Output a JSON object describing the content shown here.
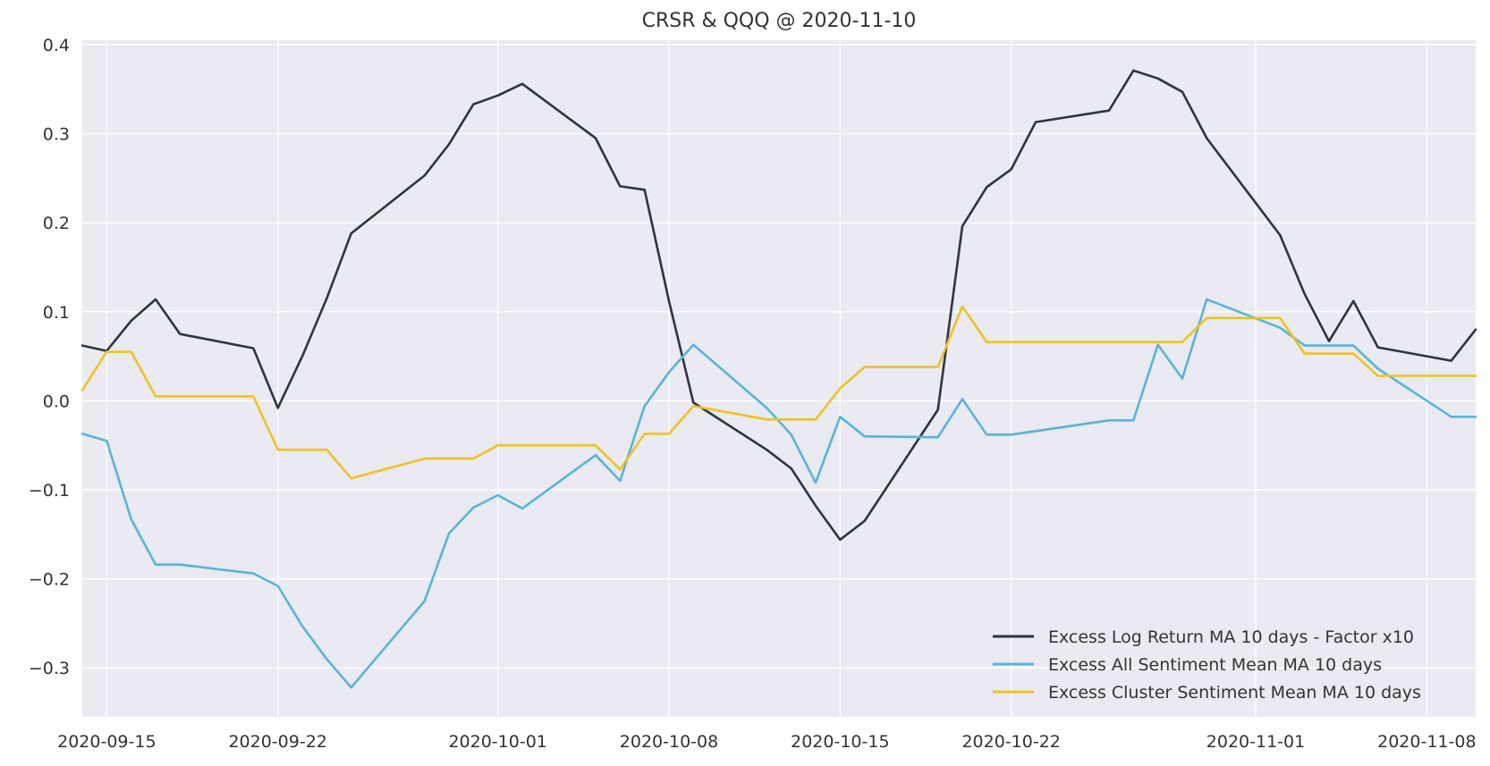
{
  "chart_data": {
    "type": "line",
    "title": "CRSR & QQQ @ 2020-11-10",
    "xlabel": "",
    "ylabel": "",
    "x_tick_labels": [
      "2020-09-15",
      "2020-09-22",
      "2020-10-01",
      "2020-10-08",
      "2020-10-15",
      "2020-10-22",
      "2020-11-01",
      "2020-11-08"
    ],
    "y_tick_labels": [
      "0.4",
      "0.3",
      "0.2",
      "0.1",
      "0.0",
      "−0.1",
      "−0.2",
      "−0.3"
    ],
    "y_ticks": [
      0.4,
      0.3,
      0.2,
      0.1,
      0.0,
      -0.1,
      -0.2,
      -0.3
    ],
    "xlim": [
      "2020-09-14",
      "2020-11-10"
    ],
    "ylim": [
      -0.355,
      0.405
    ],
    "grid": true,
    "legend_position": "lower-right",
    "series": [
      {
        "name": "Excess Log Return MA 10 days - Factor x10",
        "color": "#2e3440",
        "points": [
          [
            "2020-09-14",
            0.062
          ],
          [
            "2020-09-15",
            0.056
          ],
          [
            "2020-09-16",
            0.09
          ],
          [
            "2020-09-17",
            0.114
          ],
          [
            "2020-09-18",
            0.075
          ],
          [
            "2020-09-21",
            0.059
          ],
          [
            "2020-09-22",
            -0.008
          ],
          [
            "2020-09-23",
            0.05
          ],
          [
            "2020-09-24",
            0.115
          ],
          [
            "2020-09-25",
            0.188
          ],
          [
            "2020-09-28",
            0.253
          ],
          [
            "2020-09-29",
            0.288
          ],
          [
            "2020-09-30",
            0.333
          ],
          [
            "2020-10-01",
            0.343
          ],
          [
            "2020-10-02",
            0.356
          ],
          [
            "2020-10-05",
            0.295
          ],
          [
            "2020-10-06",
            0.241
          ],
          [
            "2020-10-07",
            0.237
          ],
          [
            "2020-10-08",
            0.112
          ],
          [
            "2020-10-09",
            -0.002
          ],
          [
            "2020-10-12",
            -0.055
          ],
          [
            "2020-10-13",
            -0.076
          ],
          [
            "2020-10-14",
            -0.118
          ],
          [
            "2020-10-15",
            -0.156
          ],
          [
            "2020-10-16",
            -0.135
          ],
          [
            "2020-10-19",
            -0.01
          ],
          [
            "2020-10-20",
            0.196
          ],
          [
            "2020-10-21",
            0.24
          ],
          [
            "2020-10-22",
            0.26
          ],
          [
            "2020-10-23",
            0.313
          ],
          [
            "2020-10-26",
            0.326
          ],
          [
            "2020-10-27",
            0.371
          ],
          [
            "2020-10-28",
            0.362
          ],
          [
            "2020-10-29",
            0.347
          ],
          [
            "2020-10-30",
            0.295
          ],
          [
            "2020-11-02",
            0.186
          ],
          [
            "2020-11-03",
            0.12
          ],
          [
            "2020-11-04",
            0.067
          ],
          [
            "2020-11-05",
            0.112
          ],
          [
            "2020-11-06",
            0.06
          ],
          [
            "2020-11-09",
            0.045
          ],
          [
            "2020-11-10",
            0.08
          ]
        ]
      },
      {
        "name": "Excess All Sentiment Mean MA 10 days",
        "color": "#5ab4d6",
        "points": [
          [
            "2020-09-14",
            -0.037
          ],
          [
            "2020-09-15",
            -0.045
          ],
          [
            "2020-09-16",
            -0.133
          ],
          [
            "2020-09-17",
            -0.184
          ],
          [
            "2020-09-18",
            -0.184
          ],
          [
            "2020-09-21",
            -0.194
          ],
          [
            "2020-09-22",
            -0.208
          ],
          [
            "2020-09-23",
            -0.253
          ],
          [
            "2020-09-24",
            -0.29
          ],
          [
            "2020-09-25",
            -0.322
          ],
          [
            "2020-09-28",
            -0.225
          ],
          [
            "2020-09-29",
            -0.149
          ],
          [
            "2020-09-30",
            -0.12
          ],
          [
            "2020-10-01",
            -0.106
          ],
          [
            "2020-10-02",
            -0.121
          ],
          [
            "2020-10-05",
            -0.061
          ],
          [
            "2020-10-06",
            -0.09
          ],
          [
            "2020-10-07",
            -0.006
          ],
          [
            "2020-10-08",
            0.032
          ],
          [
            "2020-10-09",
            0.063
          ],
          [
            "2020-10-12",
            -0.008
          ],
          [
            "2020-10-13",
            -0.038
          ],
          [
            "2020-10-14",
            -0.092
          ],
          [
            "2020-10-15",
            -0.018
          ],
          [
            "2020-10-16",
            -0.04
          ],
          [
            "2020-10-19",
            -0.041
          ],
          [
            "2020-10-20",
            0.002
          ],
          [
            "2020-10-21",
            -0.038
          ],
          [
            "2020-10-22",
            -0.038
          ],
          [
            "2020-10-26",
            -0.022
          ],
          [
            "2020-10-27",
            -0.022
          ],
          [
            "2020-10-28",
            0.063
          ],
          [
            "2020-10-29",
            0.025
          ],
          [
            "2020-10-30",
            0.114
          ],
          [
            "2020-11-02",
            0.082
          ],
          [
            "2020-11-03",
            0.062
          ],
          [
            "2020-11-05",
            0.062
          ],
          [
            "2020-11-06",
            0.036
          ],
          [
            "2020-11-09",
            -0.018
          ],
          [
            "2020-11-10",
            -0.018
          ]
        ]
      },
      {
        "name": "Excess Cluster Sentiment Mean MA 10 days",
        "color": "#f0c124",
        "points": [
          [
            "2020-09-14",
            0.012
          ],
          [
            "2020-09-15",
            0.055
          ],
          [
            "2020-09-16",
            0.055
          ],
          [
            "2020-09-17",
            0.005
          ],
          [
            "2020-09-21",
            0.005
          ],
          [
            "2020-09-22",
            -0.055
          ],
          [
            "2020-09-24",
            -0.055
          ],
          [
            "2020-09-25",
            -0.087
          ],
          [
            "2020-09-28",
            -0.065
          ],
          [
            "2020-09-30",
            -0.065
          ],
          [
            "2020-10-01",
            -0.05
          ],
          [
            "2020-10-05",
            -0.05
          ],
          [
            "2020-10-06",
            -0.077
          ],
          [
            "2020-10-07",
            -0.037
          ],
          [
            "2020-10-08",
            -0.037
          ],
          [
            "2020-10-09",
            -0.006
          ],
          [
            "2020-10-12",
            -0.021
          ],
          [
            "2020-10-14",
            -0.021
          ],
          [
            "2020-10-15",
            0.014
          ],
          [
            "2020-10-16",
            0.038
          ],
          [
            "2020-10-19",
            0.038
          ],
          [
            "2020-10-20",
            0.106
          ],
          [
            "2020-10-21",
            0.066
          ],
          [
            "2020-10-29",
            0.066
          ],
          [
            "2020-10-30",
            0.093
          ],
          [
            "2020-11-02",
            0.093
          ],
          [
            "2020-11-03",
            0.053
          ],
          [
            "2020-11-05",
            0.053
          ],
          [
            "2020-11-06",
            0.028
          ],
          [
            "2020-11-10",
            0.028
          ]
        ]
      }
    ]
  }
}
